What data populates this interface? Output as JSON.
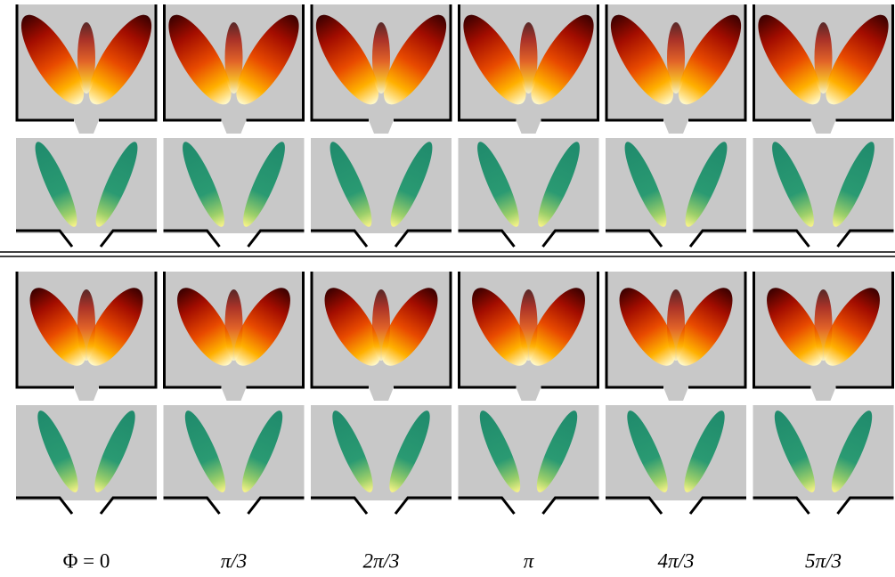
{
  "columns": [
    {
      "label": "Φ = 0"
    },
    {
      "label": "π/3"
    },
    {
      "label": "2π/3"
    },
    {
      "label": "π"
    },
    {
      "label": "4π/3"
    },
    {
      "label": "5π/3"
    }
  ]
}
